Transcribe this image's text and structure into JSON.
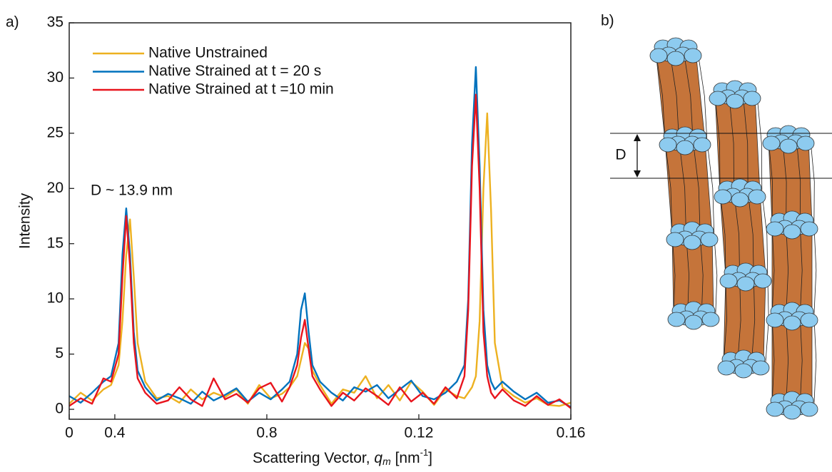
{
  "panel_labels": [
    "a)",
    "b)"
  ],
  "chart_data": {
    "type": "line",
    "x_label": {
      "text": "Scattering Vector, ",
      "var": "q",
      "sub": "m",
      "unit": " [nm",
      "sup": "-1",
      "close": "]"
    },
    "y_label": "Intensity",
    "annotation": "D  ~ 13.9 nm",
    "legend": "upper left",
    "x": [
      0.028,
      0.031,
      0.034,
      0.037,
      0.039,
      0.041,
      0.042,
      0.043,
      0.044,
      0.045,
      0.046,
      0.048,
      0.051,
      0.054,
      0.057,
      0.06,
      0.063,
      0.066,
      0.069,
      0.072,
      0.075,
      0.078,
      0.081,
      0.084,
      0.086,
      0.088,
      0.089,
      0.09,
      0.091,
      0.092,
      0.094,
      0.097,
      0.1,
      0.103,
      0.106,
      0.109,
      0.112,
      0.115,
      0.118,
      0.121,
      0.124,
      0.127,
      0.13,
      0.132,
      0.133,
      0.134,
      0.135,
      0.136,
      0.137,
      0.138,
      0.139,
      0.14,
      0.142,
      0.145,
      0.148,
      0.151,
      0.154,
      0.157,
      0.16
    ],
    "series": [
      {
        "name": "Native Unstrained",
        "color": "#EDB120",
        "values": [
          0.5,
          1.5,
          0.8,
          1.8,
          2.2,
          4,
          8,
          14,
          17.2,
          12,
          6,
          2.5,
          1,
          1.2,
          0.6,
          1.8,
          0.9,
          1.5,
          1.1,
          1.8,
          0.5,
          2.2,
          1.0,
          1.4,
          2.0,
          3.0,
          4.5,
          6.0,
          5.5,
          3.5,
          2.2,
          0.5,
          1.8,
          1.5,
          3.0,
          1.0,
          2.2,
          0.8,
          2.5,
          1.6,
          0.4,
          1.8,
          1.2,
          1.0,
          1.5,
          2.0,
          3.0,
          8,
          20,
          26.8,
          18,
          6,
          2.0,
          1.2,
          0.6,
          1.0,
          0.4,
          0.3,
          0.6
        ]
      },
      {
        "name": "Native Strained at t = 20 s",
        "color": "#0072BD",
        "values": [
          1.2,
          0.6,
          1.5,
          2.5,
          3.0,
          6,
          14,
          18.2,
          14,
          7,
          3.5,
          2.0,
          0.8,
          1.4,
          1.0,
          0.5,
          1.6,
          0.8,
          1.3,
          1.9,
          0.7,
          1.5,
          0.9,
          1.8,
          2.5,
          5.0,
          9.0,
          10.5,
          7.0,
          4.0,
          2.5,
          1.5,
          0.8,
          2.0,
          1.6,
          2.2,
          1.0,
          1.8,
          2.6,
          1.2,
          0.9,
          1.5,
          2.5,
          4.0,
          10,
          24,
          31.0,
          22,
          9,
          4,
          2.5,
          1.8,
          2.5,
          1.6,
          0.9,
          1.5,
          0.6,
          0.8,
          0.2
        ]
      },
      {
        "name": "Native Strained at t =10 min",
        "color": "#E8141D",
        "values": [
          0.3,
          1.0,
          0.5,
          2.8,
          2.5,
          5,
          12,
          17.5,
          13,
          6,
          2.8,
          1.5,
          0.5,
          0.8,
          2.0,
          0.9,
          0.3,
          2.8,
          0.9,
          1.4,
          0.6,
          1.9,
          2.4,
          0.7,
          2.0,
          4.0,
          6.5,
          8.1,
          5.5,
          3.0,
          1.8,
          0.3,
          1.5,
          0.8,
          1.9,
          1.2,
          0.4,
          2.0,
          0.7,
          1.5,
          0.5,
          2.0,
          1.0,
          3.0,
          9,
          22,
          28.5,
          20,
          7,
          3,
          1.5,
          1.0,
          1.8,
          0.8,
          0.3,
          1.2,
          0.4,
          0.9,
          0.1
        ]
      }
    ],
    "xlim": [
      0.028,
      0.16
    ],
    "xticks": [
      {
        "value": 0.028,
        "label": "0"
      },
      {
        "value": 0.04,
        "label": "0.4"
      },
      {
        "value": 0.08,
        "label": "0.8"
      },
      0.12,
      0.16
    ],
    "ylim": [
      -0.9,
      35
    ],
    "yticks": [
      0,
      5,
      10,
      15,
      20,
      25,
      30,
      35
    ]
  },
  "diagram": {
    "label": "D"
  }
}
